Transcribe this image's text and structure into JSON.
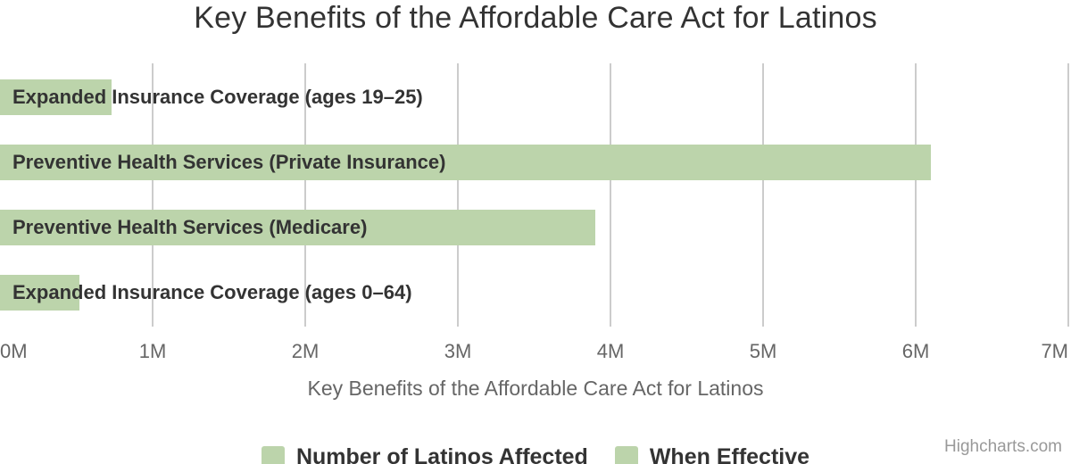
{
  "chart_data": {
    "type": "bar",
    "orientation": "horizontal",
    "title": "Key Benefits of the Affordable Care Act for Latinos",
    "xlabel": "Key Benefits of the Affordable Care Act for Latinos",
    "categories": [
      "Expanded Insurance Coverage (ages 19–25)",
      "Preventive Health Services (Private Insurance)",
      "Preventive Health Services (Medicare)",
      "Expanded Insurance Coverage (ages 0–64)"
    ],
    "values_millions": [
      0.73,
      6.1,
      3.9,
      0.52
    ],
    "x_ticks": [
      "0M",
      "1M",
      "2M",
      "3M",
      "4M",
      "5M",
      "6M",
      "7M"
    ],
    "xlim": [
      0,
      7
    ],
    "grid": true,
    "legend": {
      "position": "bottom",
      "items": [
        "Number of Latinos Affected",
        "When Effective"
      ]
    },
    "colors": {
      "bar": "#bcd4ab",
      "grid": "#cccccc",
      "title_text": "#333333",
      "axis_text": "#666666",
      "category_text": "#333333",
      "credits_text": "#999999"
    }
  },
  "credits": "Highcharts.com"
}
